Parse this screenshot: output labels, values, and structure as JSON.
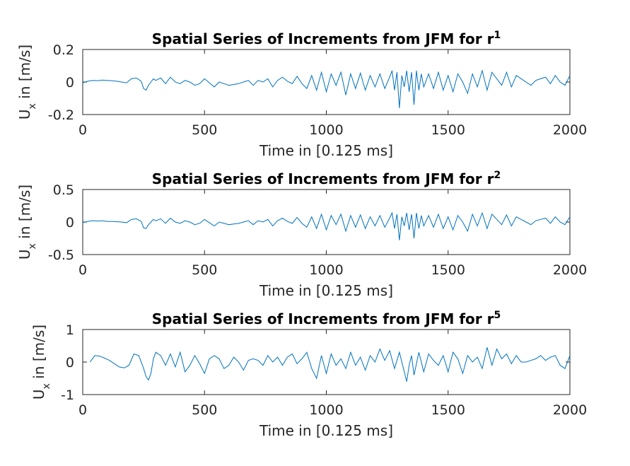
{
  "figure": {
    "background": "#ffffff",
    "line_color": "#0072BD",
    "axis_color": "#262626"
  },
  "chart_data": [
    {
      "type": "line",
      "title": "Spatial Series of Increments from JFM for r",
      "title_superscript": "1",
      "xlabel": "Time in [0.125 ms]",
      "ylabel_main": "U",
      "ylabel_sub": "x",
      "ylabel_rest": " in [m/s]",
      "xlim": [
        0,
        2000
      ],
      "ylim": [
        -0.2,
        0.2
      ],
      "xticks": [
        0,
        500,
        1000,
        1500,
        2000
      ],
      "yticks": [
        -0.2,
        0,
        0.2
      ],
      "xtick_labels": [
        "0",
        "500",
        "1000",
        "1500",
        "2000"
      ],
      "ytick_labels": [
        "-0.2",
        "0",
        "0.2"
      ],
      "grid": false,
      "series": [
        {
          "x": [
            0,
            20,
            40,
            60,
            80,
            100,
            120,
            140,
            160,
            180,
            200,
            220,
            240,
            250,
            260,
            270,
            280,
            290,
            300,
            320,
            340,
            360,
            380,
            400,
            420,
            440,
            460,
            480,
            500,
            520,
            540,
            560,
            580,
            600,
            620,
            640,
            660,
            680,
            700,
            720,
            740,
            760,
            780,
            800,
            820,
            840,
            860,
            880,
            900,
            920,
            940,
            960,
            980,
            1000,
            1020,
            1040,
            1060,
            1080,
            1100,
            1120,
            1140,
            1160,
            1180,
            1200,
            1220,
            1240,
            1260,
            1270,
            1280,
            1290,
            1300,
            1310,
            1320,
            1330,
            1340,
            1350,
            1360,
            1370,
            1380,
            1390,
            1400,
            1420,
            1440,
            1460,
            1480,
            1500,
            1520,
            1540,
            1560,
            1580,
            1600,
            1620,
            1640,
            1660,
            1680,
            1700,
            1720,
            1740,
            1760,
            1780,
            1800,
            1820,
            1840,
            1860,
            1880,
            1900,
            1920,
            1940,
            1960,
            1980,
            2000
          ],
          "y": [
            -0.005,
            0.005,
            0.01,
            0.008,
            0.012,
            0.01,
            0.008,
            0.005,
            0,
            -0.005,
            0.02,
            0.025,
            0.005,
            -0.04,
            -0.05,
            -0.02,
            0.0,
            0.02,
            0.01,
            0.025,
            -0.01,
            0.03,
            0.0,
            -0.01,
            0.01,
            0.0,
            -0.02,
            -0.01,
            0.02,
            -0.005,
            -0.03,
            0.0,
            -0.01,
            -0.02,
            -0.015,
            -0.01,
            0.0,
            0.01,
            -0.02,
            0.01,
            0.0,
            0.02,
            -0.03,
            0.01,
            0.03,
            0.005,
            -0.01,
            0.035,
            -0.01,
            -0.04,
            0.04,
            -0.05,
            0.06,
            -0.06,
            0.05,
            -0.02,
            0.06,
            -0.08,
            0.05,
            -0.04,
            0.055,
            -0.05,
            0.04,
            -0.03,
            0.05,
            -0.04,
            0.03,
            0.07,
            -0.05,
            0.06,
            -0.16,
            0.04,
            -0.03,
            0.07,
            -0.06,
            0.06,
            -0.14,
            0.07,
            -0.05,
            0.05,
            -0.03,
            0.05,
            -0.04,
            0.06,
            -0.05,
            0.04,
            -0.06,
            0.05,
            0.0,
            -0.07,
            0.05,
            -0.03,
            0.07,
            -0.05,
            0.06,
            0.02,
            -0.02,
            0.06,
            -0.03,
            0.04,
            0.02,
            0.0,
            -0.02,
            0.01,
            0.02,
            0.03,
            -0.01,
            0.04,
            0.0,
            -0.02,
            0.04
          ]
        }
      ]
    },
    {
      "type": "line",
      "title": "Spatial Series of Increments from JFM for r",
      "title_superscript": "2",
      "xlabel": "Time in [0.125 ms]",
      "ylabel_main": "U",
      "ylabel_sub": "x",
      "ylabel_rest": " in [m/s]",
      "xlim": [
        0,
        2000
      ],
      "ylim": [
        -0.5,
        0.5
      ],
      "xticks": [
        0,
        500,
        1000,
        1500,
        2000
      ],
      "yticks": [
        -0.5,
        0,
        0.5
      ],
      "xtick_labels": [
        "0",
        "500",
        "1000",
        "1500",
        "2000"
      ],
      "ytick_labels": [
        "-0.5",
        "0",
        "0.5"
      ],
      "grid": false,
      "series": [
        {
          "x": [
            0,
            20,
            40,
            60,
            80,
            100,
            120,
            140,
            160,
            180,
            200,
            220,
            240,
            250,
            260,
            270,
            280,
            290,
            300,
            320,
            340,
            360,
            380,
            400,
            420,
            440,
            460,
            480,
            500,
            520,
            540,
            560,
            580,
            600,
            620,
            640,
            660,
            680,
            700,
            720,
            740,
            760,
            780,
            800,
            820,
            840,
            860,
            880,
            900,
            920,
            940,
            960,
            980,
            1000,
            1020,
            1040,
            1060,
            1080,
            1100,
            1120,
            1140,
            1160,
            1180,
            1200,
            1220,
            1240,
            1260,
            1270,
            1280,
            1290,
            1300,
            1310,
            1320,
            1330,
            1340,
            1350,
            1360,
            1370,
            1380,
            1390,
            1400,
            1420,
            1440,
            1460,
            1480,
            1500,
            1520,
            1540,
            1560,
            1580,
            1600,
            1620,
            1640,
            1660,
            1680,
            1700,
            1720,
            1740,
            1760,
            1780,
            1800,
            1820,
            1840,
            1860,
            1880,
            1900,
            1920,
            1940,
            1960,
            1980,
            2000
          ],
          "y": [
            -0.01,
            0.01,
            0.02,
            0.015,
            0.02,
            0.01,
            0.01,
            0.005,
            0,
            -0.01,
            0.04,
            0.05,
            0.01,
            -0.09,
            -0.1,
            -0.04,
            0.0,
            0.04,
            0.02,
            0.05,
            -0.02,
            0.06,
            0.0,
            -0.02,
            0.02,
            0.0,
            -0.04,
            -0.02,
            0.04,
            -0.01,
            -0.06,
            0.0,
            -0.02,
            -0.04,
            -0.03,
            -0.02,
            0.0,
            0.02,
            -0.04,
            0.02,
            0.0,
            0.04,
            -0.06,
            0.02,
            0.06,
            0.01,
            -0.02,
            0.07,
            -0.02,
            -0.08,
            0.08,
            -0.1,
            0.12,
            -0.12,
            0.1,
            -0.04,
            0.12,
            -0.14,
            0.1,
            -0.08,
            0.11,
            -0.1,
            0.08,
            -0.06,
            0.1,
            -0.08,
            0.06,
            0.14,
            -0.1,
            0.12,
            -0.28,
            0.08,
            -0.06,
            0.14,
            -0.12,
            0.12,
            -0.25,
            0.14,
            -0.1,
            0.1,
            -0.06,
            0.1,
            -0.08,
            0.12,
            -0.1,
            0.08,
            -0.12,
            0.1,
            0.0,
            -0.14,
            0.12,
            -0.06,
            0.14,
            -0.1,
            0.12,
            0.04,
            -0.04,
            0.11,
            -0.06,
            0.08,
            0.04,
            0.0,
            -0.04,
            0.02,
            0.04,
            0.06,
            -0.02,
            0.08,
            0.0,
            -0.04,
            0.08
          ]
        }
      ]
    },
    {
      "type": "line",
      "title": "Spatial Series of Increments from JFM for r",
      "title_superscript": "5",
      "xlabel": "Time in [0.125 ms]",
      "ylabel_main": "U",
      "ylabel_sub": "x",
      "ylabel_rest": " in [m/s]",
      "xlim": [
        0,
        2000
      ],
      "ylim": [
        -1,
        1
      ],
      "xticks": [
        0,
        500,
        1000,
        1500,
        2000
      ],
      "yticks": [
        -1,
        0,
        1
      ],
      "xtick_labels": [
        "0",
        "500",
        "1000",
        "1500",
        "2000"
      ],
      "ytick_labels": [
        "-1",
        "0",
        "1"
      ],
      "grid": false,
      "series": [
        {
          "x": [
            30,
            50,
            70,
            90,
            110,
            130,
            150,
            170,
            190,
            210,
            230,
            250,
            260,
            270,
            280,
            290,
            300,
            320,
            340,
            360,
            380,
            400,
            420,
            440,
            460,
            480,
            500,
            520,
            540,
            560,
            580,
            600,
            620,
            640,
            660,
            680,
            700,
            720,
            740,
            760,
            780,
            800,
            820,
            840,
            860,
            880,
            900,
            920,
            940,
            960,
            980,
            1000,
            1020,
            1040,
            1060,
            1080,
            1100,
            1120,
            1140,
            1160,
            1180,
            1200,
            1220,
            1240,
            1260,
            1280,
            1300,
            1320,
            1330,
            1340,
            1350,
            1360,
            1380,
            1400,
            1420,
            1440,
            1460,
            1480,
            1500,
            1520,
            1540,
            1560,
            1580,
            1600,
            1620,
            1640,
            1660,
            1680,
            1700,
            1720,
            1740,
            1760,
            1780,
            1800,
            1820,
            1840,
            1860,
            1880,
            1900,
            1920,
            1940,
            1960,
            1980,
            2000
          ],
          "y": [
            0.0,
            0.2,
            0.18,
            0.12,
            0.05,
            -0.05,
            -0.15,
            -0.18,
            -0.1,
            0.25,
            0.2,
            -0.2,
            -0.45,
            -0.55,
            -0.35,
            0.1,
            0.3,
            0.2,
            -0.1,
            0.25,
            -0.15,
            0.3,
            -0.3,
            -0.1,
            0.2,
            -0.05,
            -0.35,
            0.1,
            0.2,
            0.1,
            -0.2,
            -0.1,
            0.15,
            0.0,
            -0.25,
            0.05,
            0.1,
            0.05,
            -0.1,
            0.2,
            0.0,
            0.15,
            -0.1,
            0.15,
            0.25,
            -0.05,
            0.1,
            0.3,
            -0.2,
            -0.5,
            0.2,
            -0.35,
            0.25,
            -0.1,
            0.1,
            -0.2,
            0.3,
            -0.1,
            0.15,
            -0.25,
            0.2,
            0.0,
            0.4,
            0.05,
            0.35,
            -0.2,
            0.3,
            -0.3,
            -0.6,
            -0.1,
            0.2,
            -0.4,
            0.3,
            -0.3,
            0.25,
            0.05,
            -0.1,
            0.2,
            -0.3,
            0.3,
            0.1,
            -0.35,
            0.2,
            0.0,
            0.15,
            -0.2,
            0.45,
            -0.1,
            0.4,
            0.1,
            0.25,
            -0.05,
            0.2,
            0.0,
            0.0,
            0.05,
            0.1,
            0.2,
            0.05,
            0.15,
            0.2,
            -0.1,
            -0.2,
            0.2
          ]
        }
      ]
    }
  ]
}
